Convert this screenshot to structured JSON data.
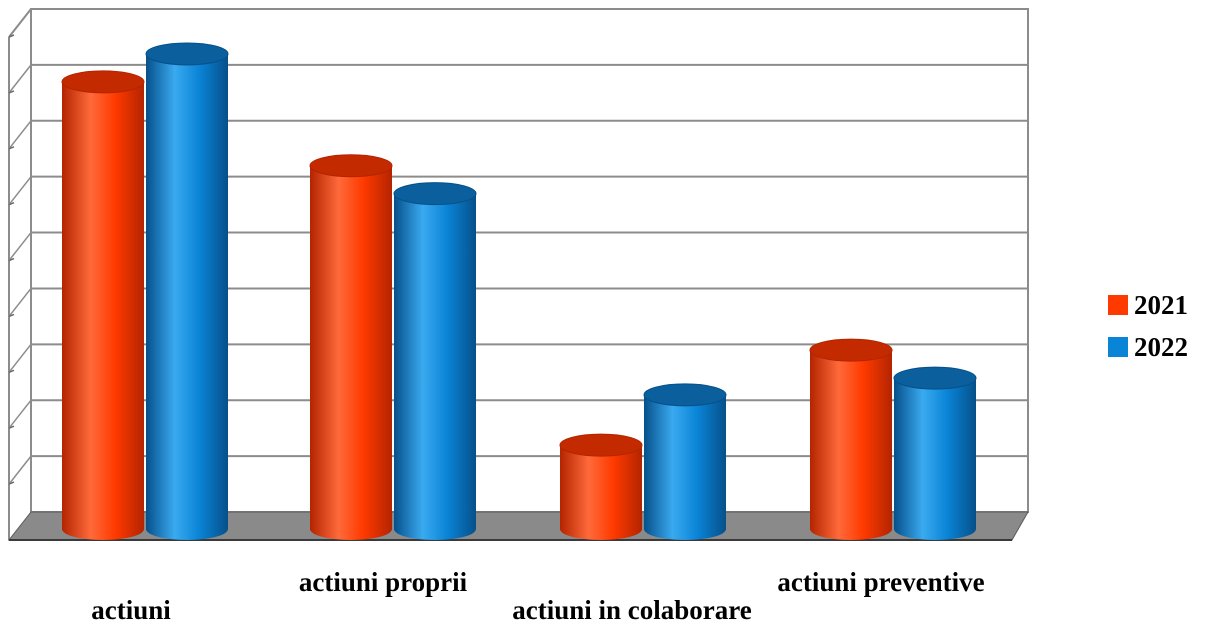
{
  "chart_data": {
    "type": "bar",
    "categories": [
      "actiuni",
      "actiuni proprii",
      "actiuni in colaborare",
      "actiuni preventive"
    ],
    "series": [
      {
        "name": "2021",
        "color": "#ff3a00",
        "values": [
          80,
          65,
          15,
          32
        ]
      },
      {
        "name": "2022",
        "color": "#0a84d6",
        "values": [
          85,
          60,
          24,
          27
        ]
      }
    ],
    "ylim": [
      0,
      90
    ],
    "grid": true,
    "legend_position": "right"
  }
}
